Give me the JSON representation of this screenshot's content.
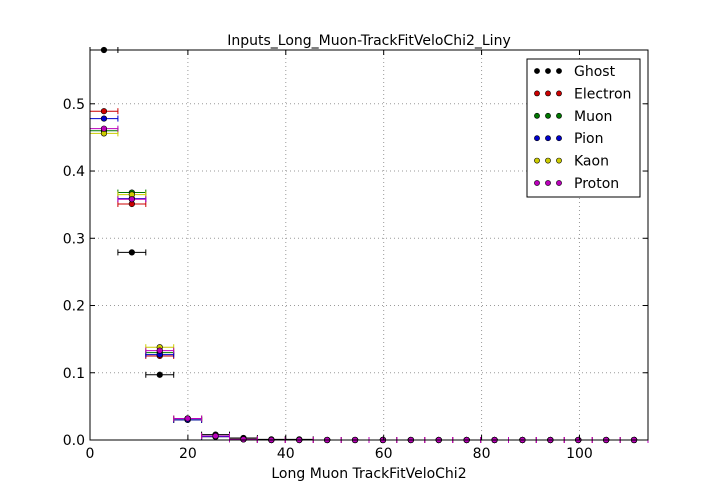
{
  "chart_data": {
    "type": "scatter",
    "title": "Inputs_Long_Muon-TrackFitVeloChi2_Liny",
    "xlabel": "Long Muon TrackFitVeloChi2",
    "ylabel": "",
    "xlim": [
      0,
      114
    ],
    "ylim": [
      0,
      0.58
    ],
    "xticks": [
      "0",
      "20",
      "40",
      "60",
      "80",
      "100"
    ],
    "yticks": [
      "0.0",
      "0.1",
      "0.2",
      "0.3",
      "0.4",
      "0.5"
    ],
    "grid": true,
    "legend_position": "top-right",
    "bin_half_width": 2.85,
    "x": [
      2.85,
      8.55,
      14.25,
      19.95,
      25.65,
      31.35,
      37.05,
      42.75,
      48.45,
      54.15,
      59.85,
      65.55,
      71.25,
      76.95,
      82.65,
      88.35,
      94.05,
      99.75,
      105.45,
      111.15
    ],
    "series": [
      {
        "name": "Ghost",
        "color": "#000000",
        "values": [
          0.58,
          0.279,
          0.097,
          0.032,
          0.008,
          0.003,
          0.001,
          0.001,
          0.0,
          0.0,
          0.0,
          0.0,
          0.0,
          0.0,
          0.0,
          0.0,
          0.0,
          0.0,
          0.0,
          0.0
        ]
      },
      {
        "name": "Electron",
        "color": "#cc0000",
        "values": [
          0.489,
          0.351,
          0.125,
          0.03,
          0.005,
          0.001,
          0.0,
          0.0,
          0.0,
          0.0,
          0.0,
          0.0,
          0.0,
          0.0,
          0.0,
          0.0,
          0.0,
          0.0,
          0.0,
          0.0
        ]
      },
      {
        "name": "Muon",
        "color": "#007700",
        "values": [
          0.46,
          0.368,
          0.13,
          0.03,
          0.005,
          0.001,
          0.0,
          0.0,
          0.0,
          0.0,
          0.0,
          0.0,
          0.0,
          0.0,
          0.0,
          0.0,
          0.0,
          0.0,
          0.0,
          0.0
        ]
      },
      {
        "name": "Pion",
        "color": "#0000cc",
        "values": [
          0.478,
          0.359,
          0.127,
          0.03,
          0.005,
          0.001,
          0.0,
          0.0,
          0.0,
          0.0,
          0.0,
          0.0,
          0.0,
          0.0,
          0.0,
          0.0,
          0.0,
          0.0,
          0.0,
          0.0
        ]
      },
      {
        "name": "Kaon",
        "color": "#cccc00",
        "values": [
          0.456,
          0.365,
          0.138,
          0.032,
          0.006,
          0.001,
          0.0,
          0.0,
          0.0,
          0.0,
          0.0,
          0.0,
          0.0,
          0.0,
          0.0,
          0.0,
          0.0,
          0.0,
          0.0,
          0.0
        ]
      },
      {
        "name": "Proton",
        "color": "#bb00bb",
        "values": [
          0.463,
          0.358,
          0.133,
          0.032,
          0.006,
          0.001,
          0.0,
          0.0,
          0.0,
          0.0,
          0.0,
          0.0,
          0.0,
          0.0,
          0.0,
          0.0,
          0.0,
          0.0,
          0.0,
          0.0
        ]
      }
    ]
  }
}
